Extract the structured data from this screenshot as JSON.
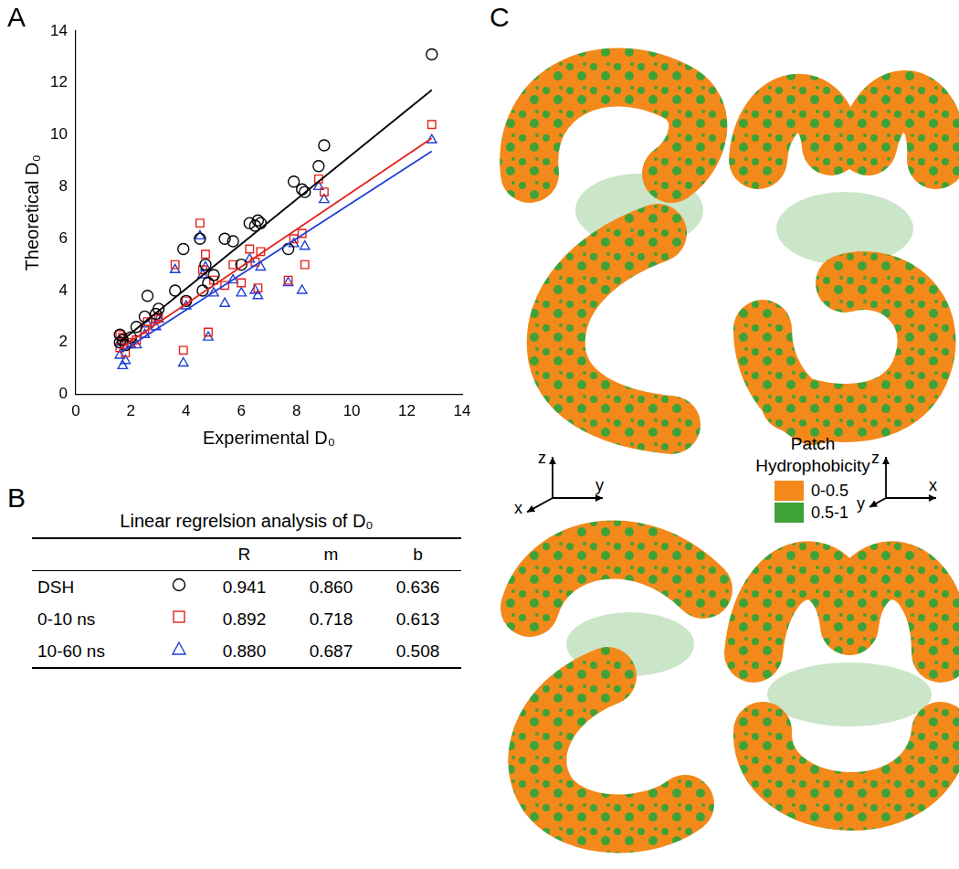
{
  "panel_labels": [
    "A",
    "B",
    "C"
  ],
  "chart_data": {
    "type": "scatter",
    "x_label": "Experimental D₀",
    "y_label": "Theoretical D₀",
    "xlim": [
      0,
      14
    ],
    "xticks": [
      0,
      2,
      4,
      6,
      8,
      10,
      12,
      14
    ],
    "ylim": [
      0,
      14
    ],
    "yticks": [
      0,
      2,
      4,
      6,
      8,
      10,
      12,
      14
    ],
    "grid": false,
    "x": [
      1.6,
      1.6,
      1.7,
      1.8,
      2.0,
      2.2,
      2.5,
      2.6,
      2.9,
      3.0,
      3.6,
      3.9,
      4.0,
      4.5,
      4.6,
      4.7,
      4.8,
      5.0,
      5.4,
      5.7,
      6.0,
      6.3,
      6.5,
      6.6,
      6.7,
      7.7,
      7.9,
      8.2,
      8.3,
      8.8,
      9.0,
      12.9
    ],
    "series": [
      {
        "name": "DSH",
        "color": "#000000",
        "marker": "circle",
        "values": [
          2.0,
          2.3,
          2.1,
          1.9,
          2.2,
          2.6,
          3.0,
          3.8,
          3.1,
          3.3,
          4.0,
          5.6,
          3.6,
          6.0,
          4.0,
          5.0,
          4.3,
          4.6,
          6.0,
          5.9,
          5.0,
          6.6,
          6.5,
          6.7,
          6.6,
          5.6,
          8.2,
          7.9,
          7.8,
          8.8,
          9.6,
          13.1
        ]
      },
      {
        "name": "0-10 ns",
        "color": "#e3221b",
        "marker": "square",
        "values": [
          1.8,
          2.3,
          2.2,
          1.6,
          2.0,
          2.1,
          2.5,
          2.8,
          2.9,
          3.0,
          5.0,
          1.7,
          3.6,
          6.6,
          4.8,
          5.4,
          2.4,
          4.4,
          4.2,
          5.0,
          4.3,
          5.6,
          5.1,
          4.1,
          5.5,
          4.4,
          6.0,
          6.2,
          5.0,
          8.3,
          7.8,
          10.4
        ]
      },
      {
        "name": "10-60 ns",
        "color": "#1f3fd6",
        "marker": "triangle",
        "values": [
          1.5,
          2.0,
          1.1,
          1.3,
          1.9,
          1.9,
          2.3,
          2.7,
          2.6,
          2.9,
          4.8,
          1.2,
          3.4,
          6.1,
          4.6,
          4.9,
          2.2,
          3.9,
          3.5,
          4.4,
          3.9,
          5.2,
          4.0,
          3.8,
          4.9,
          4.3,
          5.8,
          4.0,
          5.7,
          8.0,
          7.5,
          9.8
        ]
      }
    ]
  },
  "table": {
    "title": "Linear regrelsion analysis of D₀",
    "columns": [
      "R",
      "m",
      "b"
    ],
    "rows": [
      {
        "name": "DSH",
        "marker": "circle",
        "color": "#000000",
        "R": "0.941",
        "m": "0.860",
        "b": "0.636"
      },
      {
        "name": "0-10 ns",
        "marker": "square",
        "color": "#e3221b",
        "R": "0.892",
        "m": "0.718",
        "b": "0.613"
      },
      {
        "name": "10-60 ns",
        "marker": "triangle",
        "color": "#1f3fd6",
        "R": "0.880",
        "m": "0.687",
        "b": "0.508"
      }
    ]
  },
  "panel_c": {
    "legend_title": [
      "Patch",
      "Hydrophobicity"
    ],
    "legend_items": [
      {
        "label": "0-0.5",
        "color": "#f2891a"
      },
      {
        "label": "0.5-1",
        "color": "#3fa236"
      }
    ],
    "axis_triads": [
      {
        "up": "z",
        "left": "x",
        "right": "y"
      },
      {
        "up": "z",
        "left": "y",
        "right": "x"
      }
    ]
  }
}
